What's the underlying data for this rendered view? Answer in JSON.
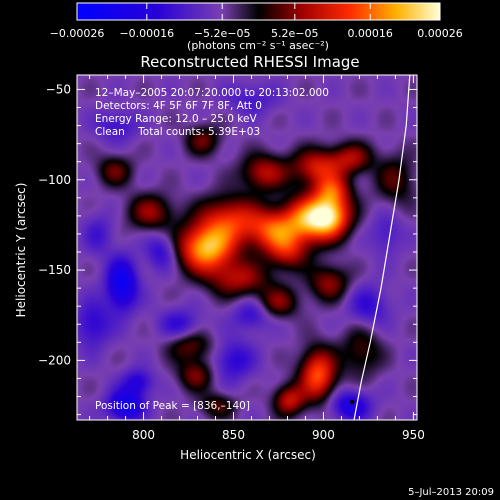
{
  "chart_data": {
    "type": "heatmap",
    "title": "Reconstructed RHESSI Image",
    "xlabel": "Heliocentric X (arcsec)",
    "ylabel": "Heliocentric Y (arcsec)",
    "xlim": [
      763,
      952
    ],
    "ylim": [
      -233,
      -42
    ],
    "x_ticks": [
      800,
      850,
      900,
      950
    ],
    "x_tick_labels": [
      "800",
      "850",
      "900",
      "950"
    ],
    "y_ticks": [
      -50,
      -100,
      -150,
      -200
    ],
    "y_tick_labels": [
      "−50",
      "−100",
      "−150",
      "−200"
    ],
    "colorbar": {
      "ticks": [
        -0.00026,
        -0.00016,
        -5.2e-05,
        5.2e-05,
        0.00016,
        0.00026
      ],
      "tick_labels": [
        "−0.00026",
        "−0.00016",
        "−5.2e−05",
        "5.2e−05",
        "0.00016",
        "0.00026"
      ],
      "unit_label": "(photons cm⁻² s⁻¹ asec⁻²)",
      "range": [
        -0.00026,
        0.00026
      ]
    },
    "annotations": [
      "12–May–2005 20:07:20.000 to 20:13:02.000",
      "Detectors: 4F 5F 6F 7F 8F, Att 0",
      "Energy Range: 12.0 – 25.0 keV",
      "Clean    Total counts: 5.39E+03"
    ],
    "peak_label": "Position of Peak = [836,–140]",
    "peak": [
      836,
      -140
    ],
    "grid": false,
    "footer": "5–Jul–2013 20:09",
    "blobs": [
      {
        "x": 835,
        "y": -138,
        "sx": 11,
        "sy": 9,
        "a": 0.000255
      },
      {
        "x": 848,
        "y": -122,
        "sx": 12,
        "sy": 9,
        "a": 0.00016
      },
      {
        "x": 872,
        "y": -128,
        "sx": 10,
        "sy": 8,
        "a": 0.00017
      },
      {
        "x": 892,
        "y": -122,
        "sx": 10,
        "sy": 9,
        "a": 0.000215
      },
      {
        "x": 904,
        "y": -120,
        "sx": 8,
        "sy": 8,
        "a": 0.00022
      },
      {
        "x": 867,
        "y": -96,
        "sx": 9,
        "sy": 7,
        "a": 0.00013
      },
      {
        "x": 897,
        "y": -93,
        "sx": 10,
        "sy": 7,
        "a": 0.00015
      },
      {
        "x": 916,
        "y": -88,
        "sx": 8,
        "sy": 6,
        "a": 0.00011
      },
      {
        "x": 905,
        "y": -106,
        "sx": 7,
        "sy": 6,
        "a": 0.00014
      },
      {
        "x": 880,
        "y": -140,
        "sx": 8,
        "sy": 7,
        "a": 0.00012
      },
      {
        "x": 853,
        "y": -155,
        "sx": 12,
        "sy": 7,
        "a": 0.00012
      },
      {
        "x": 875,
        "y": -168,
        "sx": 8,
        "sy": 6,
        "a": 0.0001
      },
      {
        "x": 903,
        "y": -157,
        "sx": 8,
        "sy": 7,
        "a": 0.00011
      },
      {
        "x": 897,
        "y": -208,
        "sx": 7,
        "sy": 10,
        "a": 0.0002
      },
      {
        "x": 881,
        "y": -222,
        "sx": 6,
        "sy": 6,
        "a": 0.00014
      },
      {
        "x": 804,
        "y": -118,
        "sx": 9,
        "sy": 7,
        "a": 0.00011
      },
      {
        "x": 833,
        "y": -78,
        "sx": 7,
        "sy": 6,
        "a": 9e-05
      },
      {
        "x": 784,
        "y": -95,
        "sx": 7,
        "sy": 6,
        "a": 9e-05
      },
      {
        "x": 826,
        "y": -192,
        "sx": 9,
        "sy": 6,
        "a": 9e-05
      },
      {
        "x": 829,
        "y": -208,
        "sx": 7,
        "sy": 6,
        "a": 0.0001
      },
      {
        "x": 841,
        "y": -225,
        "sx": 7,
        "sy": 5,
        "a": 8e-05
      },
      {
        "x": 940,
        "y": -100,
        "sx": 8,
        "sy": 10,
        "a": 8e-05
      },
      {
        "x": 921,
        "y": -195,
        "sx": 8,
        "sy": 10,
        "a": 8e-05
      },
      {
        "x": 788,
        "y": -158,
        "sx": 6,
        "sy": 10,
        "a": -0.00017
      },
      {
        "x": 790,
        "y": -225,
        "sx": 7,
        "sy": 6,
        "a": -0.00016
      },
      {
        "x": 797,
        "y": -212,
        "sx": 6,
        "sy": 5,
        "a": -0.0001
      },
      {
        "x": 772,
        "y": -180,
        "sx": 7,
        "sy": 9,
        "a": -9e-05
      },
      {
        "x": 810,
        "y": -140,
        "sx": 6,
        "sy": 7,
        "a": -9e-05
      },
      {
        "x": 820,
        "y": -180,
        "sx": 8,
        "sy": 6,
        "a": -8e-05
      },
      {
        "x": 850,
        "y": -200,
        "sx": 8,
        "sy": 8,
        "a": -9e-05
      },
      {
        "x": 860,
        "y": -175,
        "sx": 7,
        "sy": 6,
        "a": -8e-05
      },
      {
        "x": 915,
        "y": -225,
        "sx": 8,
        "sy": 6,
        "a": -0.00012
      },
      {
        "x": 785,
        "y": -70,
        "sx": 8,
        "sy": 6,
        "a": -7e-05
      },
      {
        "x": 860,
        "y": -55,
        "sx": 10,
        "sy": 6,
        "a": -6e-05
      },
      {
        "x": 925,
        "y": -170,
        "sx": 8,
        "sy": 8,
        "a": -8e-05
      },
      {
        "x": 935,
        "y": -130,
        "sx": 6,
        "sy": 8,
        "a": -6e-05
      },
      {
        "x": 775,
        "y": -130,
        "sx": 6,
        "sy": 8,
        "a": -6e-05
      }
    ],
    "limb": [
      [
        948,
        -42
      ],
      [
        946,
        -70
      ],
      [
        942,
        -100
      ],
      [
        937,
        -130
      ],
      [
        932,
        -160
      ],
      [
        926,
        -190
      ],
      [
        921,
        -212
      ],
      [
        917,
        -233
      ]
    ]
  }
}
